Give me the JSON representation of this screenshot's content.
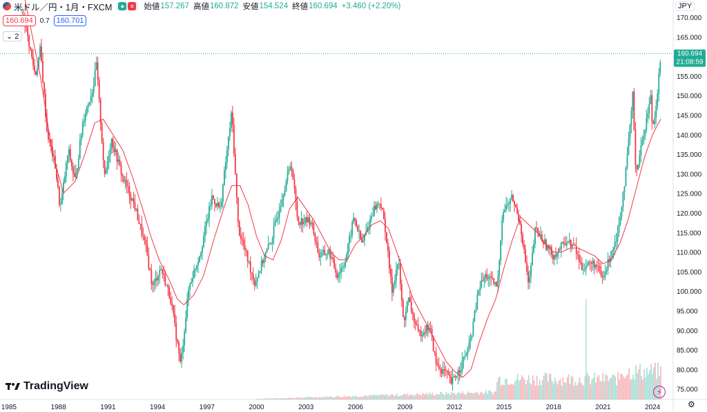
{
  "header": {
    "symbol": "米ドル／円・1月・FXCM",
    "open_label": "始値",
    "open": "157.267",
    "high_label": "高値",
    "high": "160.872",
    "low_label": "安値",
    "low": "154.524",
    "close_label": "終値",
    "close": "160.694",
    "change": "+3.460 (+2.20%)",
    "sell_price": "160.694",
    "spread": "0.7",
    "buy_price": "160.701",
    "indicators_toggle": "2",
    "currency": "JPY"
  },
  "last_price": {
    "value": "160.694",
    "countdown": "21:08:59"
  },
  "brand": "TradingView",
  "colors": {
    "up": "#22ab94",
    "down": "#f23645",
    "ma": "#f23645",
    "last_line": "#22ab94"
  },
  "chart_data": {
    "type": "candlestick",
    "interval": "1M",
    "y_axis_ticks": [
      "170.000",
      "165.000",
      "160.000",
      "155.000",
      "150.000",
      "145.000",
      "140.000",
      "135.000",
      "130.000",
      "125.000",
      "120.000",
      "115.000",
      "110.000",
      "105.000",
      "100.000",
      "95.000",
      "90.000",
      "85.000",
      "80.000",
      "75.000"
    ],
    "x_axis_ticks": [
      "1985",
      "1988",
      "1991",
      "1994",
      "1997",
      "2000",
      "2003",
      "2006",
      "2009",
      "2012",
      "2015",
      "2018",
      "2021",
      "2024"
    ],
    "ylim": [
      72.5,
      173
    ],
    "price_path": [
      [
        1985.9,
        170
      ],
      [
        1986.6,
        155
      ],
      [
        1986.9,
        162
      ],
      [
        1987.3,
        141
      ],
      [
        1987.8,
        132
      ],
      [
        1988.1,
        121
      ],
      [
        1988.6,
        136
      ],
      [
        1989.0,
        128
      ],
      [
        1989.5,
        144
      ],
      [
        1990.1,
        152
      ],
      [
        1990.3,
        158
      ],
      [
        1990.8,
        129
      ],
      [
        1991.2,
        139
      ],
      [
        1991.9,
        129
      ],
      [
        1992.6,
        122
      ],
      [
        1993.3,
        111
      ],
      [
        1993.7,
        101
      ],
      [
        1994.2,
        106
      ],
      [
        1994.8,
        98
      ],
      [
        1995.3,
        84
      ],
      [
        1995.4,
        81
      ],
      [
        1995.9,
        101
      ],
      [
        1996.6,
        110
      ],
      [
        1997.3,
        124
      ],
      [
        1997.8,
        121
      ],
      [
        1998.5,
        146
      ],
      [
        1998.9,
        116
      ],
      [
        1999.9,
        102
      ],
      [
        2000.4,
        108
      ],
      [
        2000.9,
        113
      ],
      [
        2001.6,
        125
      ],
      [
        2002.1,
        133
      ],
      [
        2002.5,
        118
      ],
      [
        2003.3,
        118
      ],
      [
        2003.8,
        109
      ],
      [
        2004.4,
        110
      ],
      [
        2004.9,
        104
      ],
      [
        2005.4,
        108
      ],
      [
        2005.9,
        119
      ],
      [
        2006.4,
        112
      ],
      [
        2007.1,
        121
      ],
      [
        2007.5,
        123
      ],
      [
        2007.8,
        116
      ],
      [
        2008.2,
        100
      ],
      [
        2008.6,
        108
      ],
      [
        2008.9,
        92
      ],
      [
        2009.2,
        98
      ],
      [
        2009.8,
        89
      ],
      [
        2010.5,
        91
      ],
      [
        2010.9,
        81
      ],
      [
        2011.5,
        79
      ],
      [
        2011.8,
        76.5
      ],
      [
        2012.3,
        80
      ],
      [
        2012.9,
        86
      ],
      [
        2013.5,
        101
      ],
      [
        2013.9,
        104
      ],
      [
        2014.6,
        101
      ],
      [
        2014.9,
        120
      ],
      [
        2015.5,
        124
      ],
      [
        2016.0,
        117
      ],
      [
        2016.5,
        101
      ],
      [
        2016.9,
        116
      ],
      [
        2017.5,
        112
      ],
      [
        2018.0,
        109
      ],
      [
        2018.8,
        113
      ],
      [
        2019.3,
        111
      ],
      [
        2019.7,
        106
      ],
      [
        2020.2,
        107
      ],
      [
        2020.5,
        107
      ],
      [
        2021.0,
        103
      ],
      [
        2021.5,
        110
      ],
      [
        2021.9,
        115
      ],
      [
        2022.4,
        131
      ],
      [
        2022.8,
        150
      ],
      [
        2023.0,
        130
      ],
      [
        2023.5,
        141
      ],
      [
        2023.9,
        150
      ],
      [
        2024.0,
        141
      ],
      [
        2024.3,
        151
      ],
      [
        2024.5,
        160.7
      ]
    ],
    "ma_path": [
      [
        1985.9,
        176
      ],
      [
        1986.9,
        155
      ],
      [
        1987.6,
        136
      ],
      [
        1988.3,
        125
      ],
      [
        1989.0,
        128
      ],
      [
        1989.6,
        135
      ],
      [
        1990.2,
        143
      ],
      [
        1990.7,
        144
      ],
      [
        1991.3,
        140
      ],
      [
        1991.9,
        136
      ],
      [
        1992.5,
        129
      ],
      [
        1993.1,
        121
      ],
      [
        1993.6,
        114
      ],
      [
        1994.1,
        108
      ],
      [
        1994.7,
        103
      ],
      [
        1995.2,
        98
      ],
      [
        1995.6,
        96.5
      ],
      [
        1996.2,
        99
      ],
      [
        1996.8,
        104
      ],
      [
        1997.4,
        113
      ],
      [
        1998.0,
        121
      ],
      [
        1998.5,
        127
      ],
      [
        1999.0,
        127
      ],
      [
        1999.5,
        122
      ],
      [
        2000.0,
        114
      ],
      [
        2000.5,
        109
      ],
      [
        2001.0,
        108
      ],
      [
        2001.5,
        113
      ],
      [
        2002.0,
        121
      ],
      [
        2002.5,
        124
      ],
      [
        2003.0,
        121
      ],
      [
        2003.5,
        118
      ],
      [
        2004.0,
        114
      ],
      [
        2004.5,
        110
      ],
      [
        2005.0,
        108
      ],
      [
        2005.5,
        108
      ],
      [
        2006.0,
        112
      ],
      [
        2006.5,
        114
      ],
      [
        2007.0,
        117
      ],
      [
        2007.5,
        118
      ],
      [
        2008.0,
        116
      ],
      [
        2008.5,
        110
      ],
      [
        2009.0,
        104
      ],
      [
        2009.5,
        98
      ],
      [
        2010.0,
        94
      ],
      [
        2010.5,
        90
      ],
      [
        2011.0,
        86
      ],
      [
        2011.5,
        82
      ],
      [
        2012.0,
        79.5
      ],
      [
        2012.5,
        78
      ],
      [
        2013.0,
        80
      ],
      [
        2013.5,
        87
      ],
      [
        2014.0,
        93
      ],
      [
        2014.5,
        98
      ],
      [
        2015.0,
        106
      ],
      [
        2015.5,
        113
      ],
      [
        2016.0,
        119
      ],
      [
        2016.5,
        117
      ],
      [
        2017.0,
        115
      ],
      [
        2017.5,
        112
      ],
      [
        2018.0,
        110
      ],
      [
        2018.5,
        110
      ],
      [
        2019.0,
        111
      ],
      [
        2019.5,
        111
      ],
      [
        2020.0,
        110
      ],
      [
        2020.5,
        109
      ],
      [
        2021.0,
        107
      ],
      [
        2021.5,
        108
      ],
      [
        2022.0,
        112
      ],
      [
        2022.5,
        118
      ],
      [
        2023.0,
        126
      ],
      [
        2023.5,
        134
      ],
      [
        2024.0,
        140
      ],
      [
        2024.5,
        144
      ]
    ]
  }
}
